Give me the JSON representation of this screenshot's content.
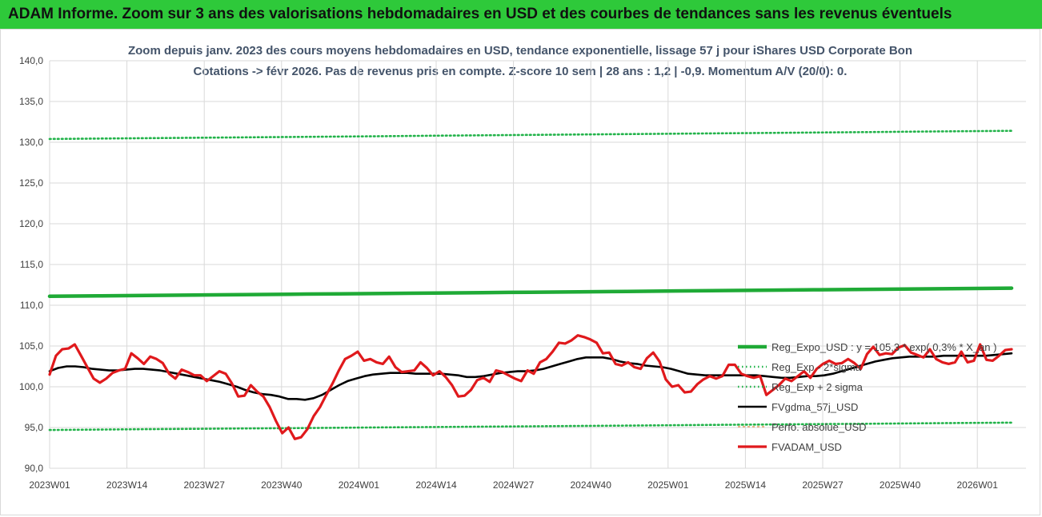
{
  "banner": {
    "text": "ADAM Informe. Zoom sur 3 ans des valorisations hebdomadaires en USD et des courbes de tendances sans les revenus éventuels"
  },
  "chart_data": {
    "type": "line",
    "title_line1": "Zoom depuis janv. 2023 des cours moyens hebdomadaires en USD, tendance exponentielle, lissage 57 j pour iShares USD Corporate Bon",
    "title_line2": "Cotations -> févr 2026. Pas de revenus pris en compte. Z-score 10 sem | 28 ans : 1,2 | -0,9. Momentum A/V (20/0): 0.",
    "ylim": [
      90,
      140
    ],
    "y_ticks": [
      "90,0",
      "95,0",
      "100,0",
      "105,0",
      "110,0",
      "115,0",
      "120,0",
      "125,0",
      "130,0",
      "135,0",
      "140,0"
    ],
    "x_tick_labels": [
      "2023W01",
      "2023W14",
      "2023W27",
      "2023W40",
      "2024W01",
      "2024W14",
      "2024W27",
      "2024W40",
      "2025W01",
      "2025W14",
      "2025W27",
      "2025W40",
      "2026W01"
    ],
    "grid": "vertical and horizontal",
    "legend_placement": "right",
    "colors": {
      "green": "#1faa36",
      "green_dotted": "#22b34a",
      "black": "#000000",
      "red": "#e0191c",
      "orange": "#e07b2a"
    },
    "series": [
      {
        "name": "Reg_Expo_USD : y = 105,3 * exp( 0,3% * X_an )",
        "style": "solid-thick",
        "color": "#1faa36",
        "start": 111.1,
        "end": 112.1
      },
      {
        "name": "Reg_Exp - 2*sigma",
        "style": "dotted",
        "color": "#22b34a",
        "start": 94.7,
        "end": 95.6
      },
      {
        "name": "Reg_Exp + 2 sigma",
        "style": "dotted",
        "color": "#22b34a",
        "start": 130.4,
        "end": 131.4
      },
      {
        "name": "FVgdma_57j_USD",
        "style": "solid",
        "color": "#000000",
        "values": [
          101.9,
          102.3,
          102.5,
          102.5,
          102.4,
          102.2,
          102.1,
          102.0,
          102.0,
          102.1,
          102.2,
          102.2,
          102.1,
          102.0,
          101.8,
          101.6,
          101.4,
          101.2,
          101.0,
          100.8,
          100.6,
          100.3,
          100.0,
          99.6,
          99.3,
          99.1,
          99.0,
          98.8,
          98.5,
          98.5,
          98.4,
          98.6,
          99.0,
          99.6,
          100.2,
          100.7,
          101.0,
          101.3,
          101.5,
          101.6,
          101.7,
          101.7,
          101.7,
          101.6,
          101.6,
          101.6,
          101.6,
          101.5,
          101.4,
          101.2,
          101.2,
          101.3,
          101.5,
          101.7,
          101.8,
          101.9,
          101.9,
          102.0,
          102.2,
          102.5,
          102.8,
          103.1,
          103.4,
          103.6,
          103.6,
          103.6,
          103.4,
          103.1,
          102.9,
          102.8,
          102.6,
          102.5,
          102.4,
          102.2,
          101.9,
          101.6,
          101.5,
          101.4,
          101.4,
          101.4,
          101.4,
          101.4,
          101.4,
          101.4,
          101.3,
          101.2,
          101.1,
          101.1,
          101.2,
          101.3,
          101.3,
          101.4,
          101.6,
          101.9,
          102.2,
          102.5,
          102.8,
          103.1,
          103.3,
          103.5,
          103.6,
          103.7,
          103.7,
          103.7,
          103.7,
          103.8,
          103.8,
          103.8,
          103.8,
          103.8,
          103.8,
          103.9,
          104.0,
          104.1
        ]
      },
      {
        "name": "Perfo. absolue_USD",
        "style": "hidden",
        "color": "#e07b2a"
      },
      {
        "name": "FVADAM_USD",
        "style": "solid-thick",
        "color": "#e0191c",
        "values": [
          101.5,
          103.8,
          104.6,
          104.7,
          105.2,
          103.8,
          102.4,
          101.0,
          100.5,
          101.0,
          101.7,
          102.0,
          102.2,
          104.1,
          103.5,
          102.8,
          103.7,
          103.4,
          102.9,
          101.6,
          101.0,
          102.1,
          101.8,
          101.4,
          101.4,
          100.7,
          101.3,
          101.9,
          101.6,
          100.4,
          98.8,
          98.9,
          100.2,
          99.4,
          98.8,
          97.5,
          95.8,
          94.3,
          95.0,
          93.6,
          93.8,
          94.8,
          96.4,
          97.5,
          99.0,
          100.4,
          102.0,
          103.4,
          103.8,
          104.3,
          103.2,
          103.4,
          103.0,
          102.8,
          103.7,
          102.4,
          101.8,
          101.9,
          102.0,
          103.0,
          102.3,
          101.4,
          101.9,
          101.2,
          100.2,
          98.8,
          98.9,
          99.6,
          100.8,
          101.1,
          100.6,
          102.0,
          101.8,
          101.4,
          101.0,
          100.7,
          102.0,
          101.6,
          103.0,
          103.4,
          104.3,
          105.4,
          105.3,
          105.7,
          106.3,
          106.1,
          105.8,
          105.4,
          104.1,
          104.2,
          102.8,
          102.6,
          103.0,
          102.4,
          102.2,
          103.5,
          104.2,
          103.1,
          100.9,
          100.0,
          100.2,
          99.3,
          99.4,
          100.3,
          100.9,
          101.3,
          101.0,
          101.3,
          102.7,
          102.7,
          101.6,
          101.3,
          101.1,
          101.3,
          99.0,
          99.6,
          100.2,
          101.0,
          100.7,
          101.3,
          101.9,
          101.1,
          102.2,
          102.8,
          103.2,
          102.8,
          102.9,
          103.4,
          102.9,
          102.2,
          104.0,
          104.9,
          103.9,
          104.1,
          104.0,
          104.8,
          105.1,
          104.2,
          103.9,
          103.6,
          104.6,
          103.4,
          103.0,
          102.8,
          103.0,
          104.3,
          103.0,
          103.2,
          105.2,
          103.3,
          103.2,
          103.8,
          104.5,
          104.6
        ]
      }
    ]
  }
}
